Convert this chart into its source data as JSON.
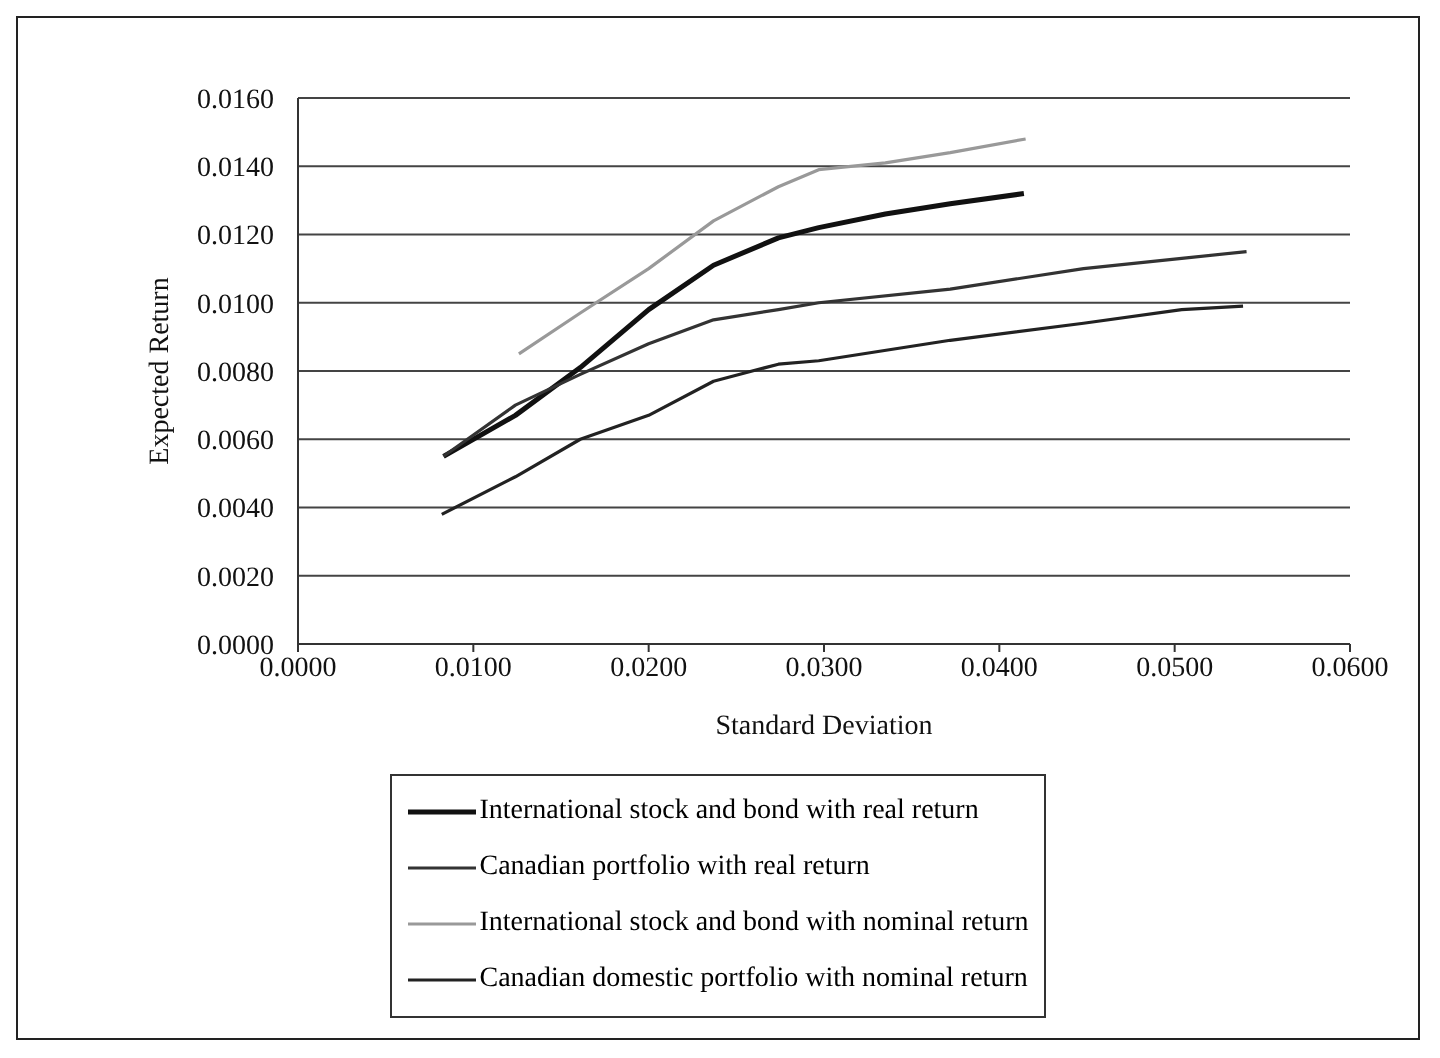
{
  "chart_data": {
    "type": "line",
    "xlabel": "Standard Deviation",
    "ylabel": "Expected Return",
    "xlim": [
      0,
      0.06
    ],
    "xticks": [
      {
        "value": 0,
        "label": "0.0000"
      },
      {
        "value": 0.01,
        "label": "0.0100"
      },
      {
        "value": 0.02,
        "label": "0.0200"
      },
      {
        "value": 0.03,
        "label": "0.0300"
      },
      {
        "value": 0.04,
        "label": "0.0400"
      },
      {
        "value": 0.05,
        "label": "0.0500"
      },
      {
        "value": 0.06,
        "label": "0.0600"
      }
    ],
    "ylim": [
      0,
      0.016
    ],
    "yticks": [
      {
        "value": 0,
        "label": "0.0000"
      },
      {
        "value": 0.002,
        "label": "0.0020"
      },
      {
        "value": 0.004,
        "label": "0.0040"
      },
      {
        "value": 0.006,
        "label": "0.0060"
      },
      {
        "value": 0.008,
        "label": "0.0080"
      },
      {
        "value": 0.01,
        "label": "0.0100"
      },
      {
        "value": 0.012,
        "label": "0.0120"
      },
      {
        "value": 0.014,
        "label": "0.0140"
      },
      {
        "value": 0.016,
        "label": "0.0160"
      }
    ],
    "grid": "y",
    "legend": "bottom",
    "line_style": "solid",
    "series": [
      {
        "name": "International stock and bond with real return",
        "color": "#111111",
        "x": [
          0.0083,
          0.0124,
          0.0161,
          0.02,
          0.0237,
          0.0274,
          0.0297,
          0.0335,
          0.0372,
          0.0414
        ],
        "values": [
          0.0055,
          0.0067,
          0.0081,
          0.0098,
          0.0111,
          0.0119,
          0.0122,
          0.0126,
          0.0129,
          0.0132
        ]
      },
      {
        "name": "Canadian portfolio with real return",
        "color": "#333333",
        "x": [
          0.0083,
          0.0124,
          0.0161,
          0.02,
          0.0237,
          0.0274,
          0.0297,
          0.0372,
          0.0448,
          0.0504,
          0.0541
        ],
        "values": [
          0.0055,
          0.007,
          0.0079,
          0.0088,
          0.0095,
          0.0098,
          0.01,
          0.0104,
          0.011,
          0.0113,
          0.0115
        ]
      },
      {
        "name": "International stock and bond with nominal return",
        "color": "#999999",
        "x": [
          0.0126,
          0.0161,
          0.02,
          0.0237,
          0.0274,
          0.0297,
          0.0335,
          0.0372,
          0.0415
        ],
        "values": [
          0.0085,
          0.0097,
          0.011,
          0.0124,
          0.0134,
          0.0139,
          0.0141,
          0.0144,
          0.0148
        ]
      },
      {
        "name": "Canadian domestic portfolio with nominal return",
        "color": "#222222",
        "x": [
          0.0082,
          0.0124,
          0.0161,
          0.02,
          0.0237,
          0.0274,
          0.0297,
          0.0372,
          0.0448,
          0.0504,
          0.0539
        ],
        "values": [
          0.0038,
          0.0049,
          0.006,
          0.0067,
          0.0077,
          0.0082,
          0.0083,
          0.0089,
          0.0094,
          0.0098,
          0.0099
        ]
      }
    ]
  }
}
